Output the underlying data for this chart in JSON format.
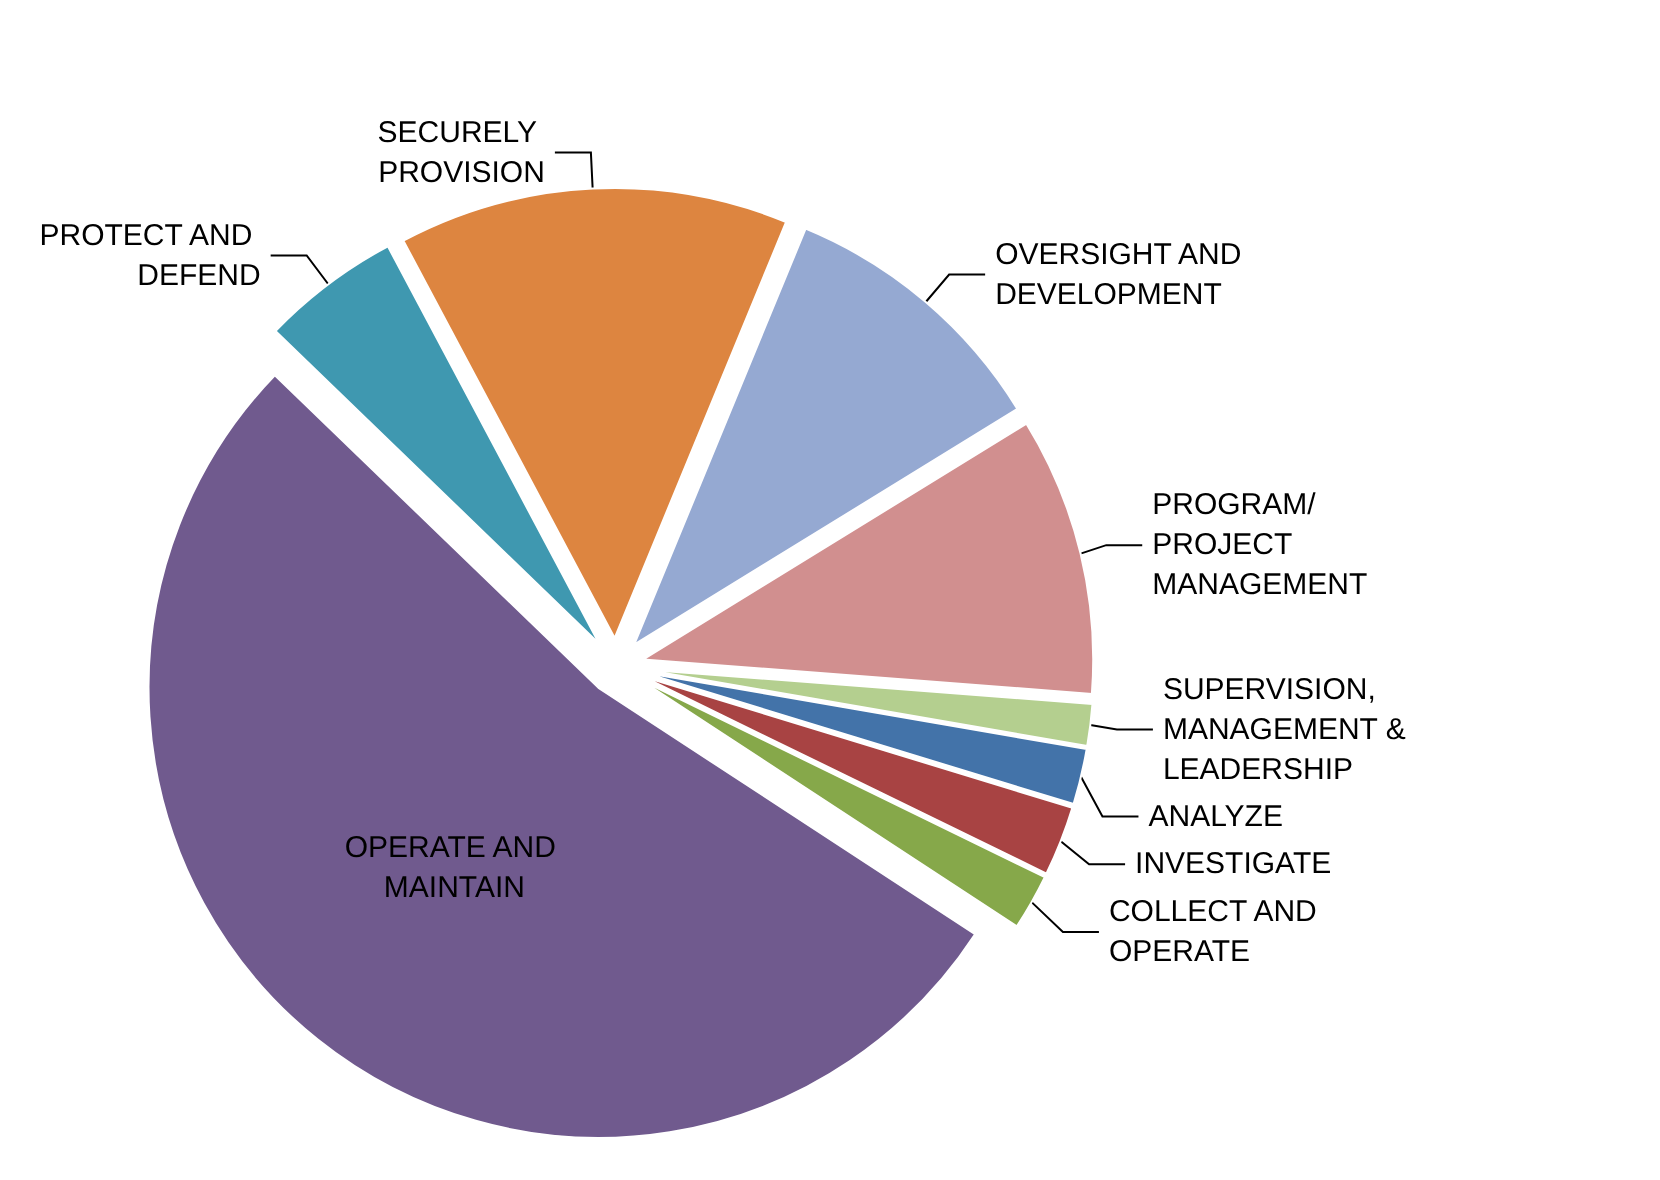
{
  "chart_data": {
    "type": "pie",
    "categories": [
      "SECURELY PROVISION",
      "OVERSIGHT AND DEVELOPMENT",
      "PROGRAM/PROJECT MANAGEMENT",
      "SUPERVISION, MANAGEMENT & LEADERSHIP",
      "ANALYZE",
      "INVESTIGATE",
      "COLLECT AND OPERATE",
      "OPERATE AND MAINTAIN",
      "PROTECT AND DEFEND"
    ],
    "values": [
      14,
      10,
      10,
      1.5,
      2,
      2.5,
      2,
      53,
      5
    ],
    "colors": [
      "#dd8540",
      "#95a9d2",
      "#d18f8f",
      "#b4cf8f",
      "#4373a9",
      "#a84343",
      "#86a84a",
      "#705a8e",
      "#3f98b0"
    ],
    "legend": false
  }
}
